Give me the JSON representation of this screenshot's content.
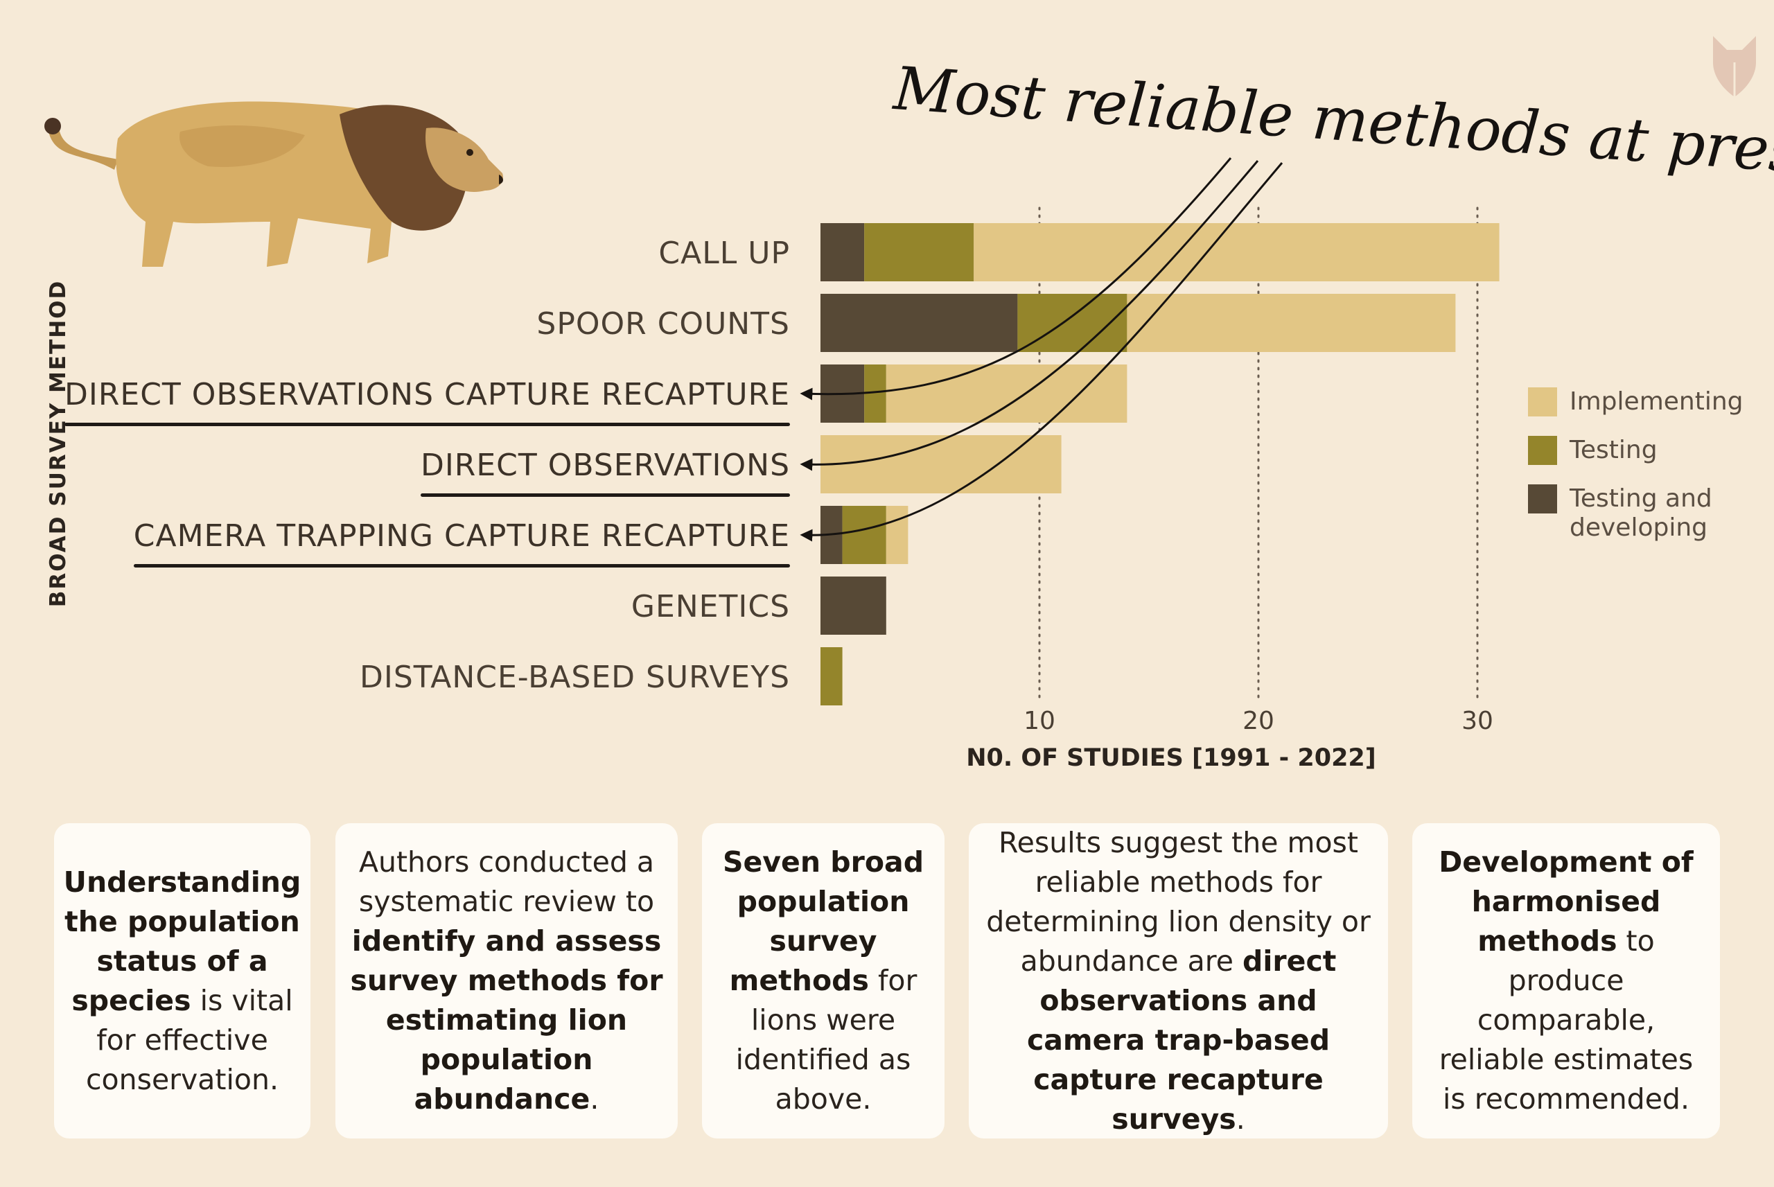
{
  "chart_data": {
    "type": "bar",
    "orientation": "horizontal",
    "stacked": true,
    "categories": [
      "CALL UP",
      "SPOOR COUNTS",
      "DIRECT OBSERVATIONS CAPTURE RECAPTURE",
      "DIRECT OBSERVATIONS",
      "CAMERA TRAPPING CAPTURE RECAPTURE",
      "GENETICS",
      "DISTANCE-BASED SURVEYS"
    ],
    "series": [
      {
        "name": "Testing and developing",
        "color": "#574936",
        "values": [
          2,
          9,
          2,
          0,
          1,
          3,
          0
        ]
      },
      {
        "name": "Testing",
        "color": "#94852b",
        "values": [
          5,
          5,
          1,
          0,
          2,
          0,
          1
        ]
      },
      {
        "name": "Implementing",
        "color": "#e2c685",
        "values": [
          24,
          15,
          11,
          11,
          1,
          0,
          0
        ]
      }
    ],
    "xlabel": "N0. OF STUDIES [1991 - 2022]",
    "ylabel": "BROAD SURVEY METHOD",
    "xticks": [
      10,
      20,
      30
    ],
    "xlim": [
      0,
      33
    ],
    "grid": "vertical dotted at ticks",
    "legend_position": "right",
    "annotation": "Most reliable methods at present",
    "highlighted_categories": [
      "DIRECT OBSERVATIONS CAPTURE RECAPTURE",
      "DIRECT OBSERVATIONS",
      "CAMERA TRAPPING CAPTURE RECAPTURE"
    ]
  },
  "legend": {
    "implementing": "Implementing",
    "testing": "Testing",
    "testing_developing_line1": "Testing and",
    "testing_developing_line2": "developing"
  },
  "cards": [
    {
      "parts": [
        {
          "b": true,
          "t": "Understanding the population status of a species"
        },
        {
          "b": false,
          "t": " is vital for effective conservation."
        }
      ]
    },
    {
      "parts": [
        {
          "b": false,
          "t": "Authors conducted a systematic review to "
        },
        {
          "b": true,
          "t": "identify and assess survey methods for estimating lion population abundance"
        },
        {
          "b": false,
          "t": "."
        }
      ]
    },
    {
      "parts": [
        {
          "b": true,
          "t": "Seven broad population survey methods"
        },
        {
          "b": false,
          "t": " for lions were identified as above."
        }
      ]
    },
    {
      "parts": [
        {
          "b": false,
          "t": "Results suggest the most reliable methods for determining lion density or abundance are "
        },
        {
          "b": true,
          "t": "direct observations and camera trap-based capture recapture surveys"
        },
        {
          "b": false,
          "t": "."
        }
      ]
    },
    {
      "parts": [
        {
          "b": true,
          "t": "Development of harmonised methods"
        },
        {
          "b": false,
          "t": " to produce comparable, reliable estimates is recommended."
        }
      ]
    }
  ],
  "icons": {
    "lion": "lion-illustration",
    "logo": "fox-logo-icon"
  }
}
